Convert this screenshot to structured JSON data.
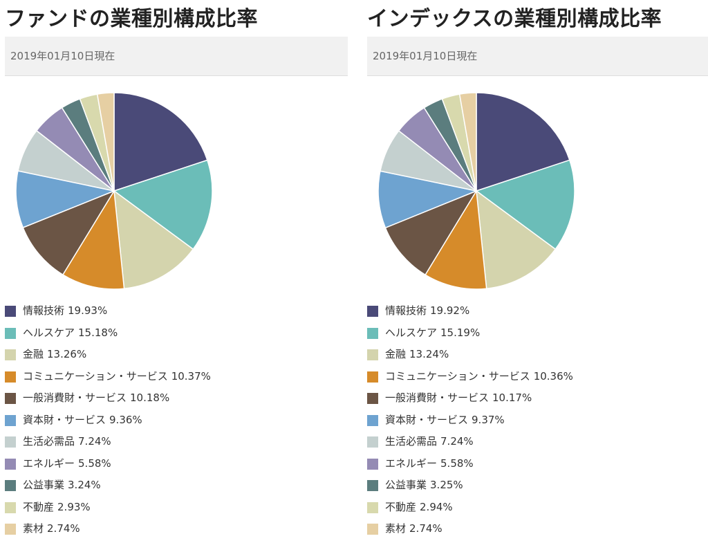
{
  "chart_data": [
    {
      "type": "pie",
      "title": "ファンドの業種別構成比率",
      "subtitle": "2019年01月10日現在",
      "categories": [
        "情報技術",
        "ヘルスケア",
        "金融",
        "コミュニケーション・サービス",
        "一般消費財・サービス",
        "資本財・サービス",
        "生活必需品",
        "エネルギー",
        "公益事業",
        "不動産",
        "素材"
      ],
      "values": [
        19.93,
        15.18,
        13.26,
        10.37,
        10.18,
        9.36,
        7.24,
        5.58,
        3.24,
        2.93,
        2.74
      ],
      "value_labels": [
        "19.93%",
        "15.18%",
        "13.26%",
        "10.37%",
        "10.18%",
        "9.36%",
        "7.24%",
        "5.58%",
        "3.24%",
        "2.93%",
        "2.74%"
      ],
      "colors": [
        "#4a4a78",
        "#6bbdb8",
        "#d4d4ad",
        "#d68b2a",
        "#6b5545",
        "#6ea3d0",
        "#c4d0cf",
        "#948bb4",
        "#5b7d7e",
        "#d8d9ad",
        "#e6cfa3"
      ],
      "legend_position": "bottom"
    },
    {
      "type": "pie",
      "title": "インデックスの業種別構成比率",
      "subtitle": "2019年01月10日現在",
      "categories": [
        "情報技術",
        "ヘルスケア",
        "金融",
        "コミュニケーション・サービス",
        "一般消費財・サービス",
        "資本財・サービス",
        "生活必需品",
        "エネルギー",
        "公益事業",
        "不動産",
        "素材"
      ],
      "values": [
        19.92,
        15.19,
        13.24,
        10.36,
        10.17,
        9.37,
        7.24,
        5.58,
        3.25,
        2.94,
        2.74
      ],
      "value_labels": [
        "19.92%",
        "15.19%",
        "13.24%",
        "10.36%",
        "10.17%",
        "9.37%",
        "7.24%",
        "5.58%",
        "3.25%",
        "2.94%",
        "2.74%"
      ],
      "colors": [
        "#4a4a78",
        "#6bbdb8",
        "#d4d4ad",
        "#d68b2a",
        "#6b5545",
        "#6ea3d0",
        "#c4d0cf",
        "#948bb4",
        "#5b7d7e",
        "#d8d9ad",
        "#e6cfa3"
      ],
      "legend_position": "bottom"
    }
  ]
}
